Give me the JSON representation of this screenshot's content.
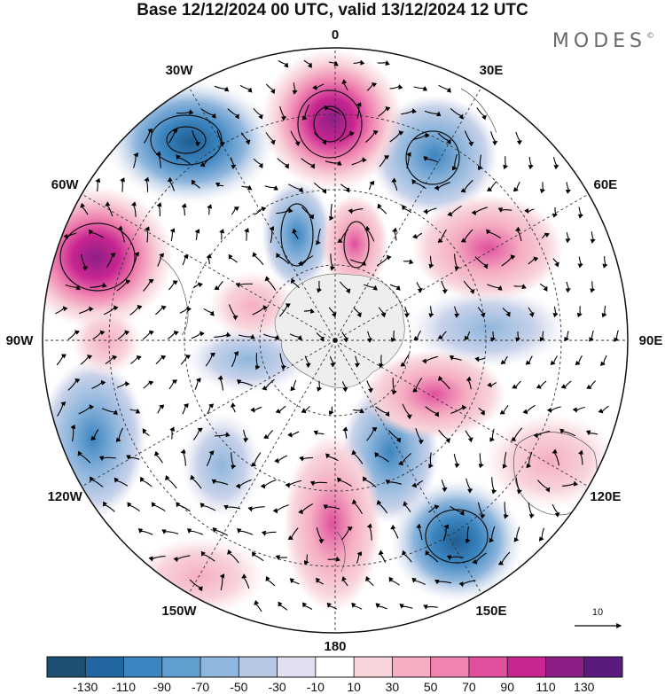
{
  "title": "Base 12/12/2024 00 UTC, valid 13/12/2024 12 UTC",
  "brand": {
    "text": "MODES",
    "mark": "©"
  },
  "map": {
    "projection": "south-polar-stereographic",
    "meridian_labels": [
      "0",
      "30E",
      "60E",
      "90E",
      "120E",
      "150E",
      "180",
      "150W",
      "120W",
      "90W",
      "60W",
      "30W"
    ],
    "vector_reference": {
      "value": "10"
    }
  },
  "colorbar": {
    "tick_labels": [
      "-130",
      "-110",
      "-90",
      "-70",
      "-50",
      "-30",
      "-10",
      "10",
      "30",
      "50",
      "70",
      "90",
      "110",
      "130"
    ],
    "colors": [
      "#1d4f72",
      "#2166a0",
      "#3b85c0",
      "#5e9fd0",
      "#8fb6dc",
      "#b8c8e4",
      "#e0e0f0",
      "#ffffff",
      "#f8d4da",
      "#f5aec2",
      "#f083b0",
      "#e0509c",
      "#c82590",
      "#8b1f86",
      "#5a1a7e"
    ]
  }
}
